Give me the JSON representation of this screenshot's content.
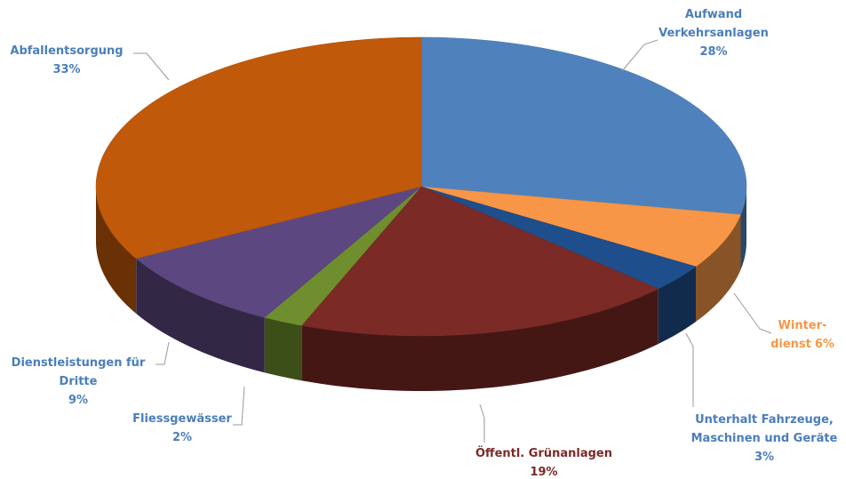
{
  "chart_data": {
    "type": "pie3d",
    "categories": [
      [
        "Aufwand",
        "Verkehrsanlagen"
      ],
      [
        "Winter-",
        "dienst"
      ],
      [
        "Unterhalt Fahrzeuge,",
        "Maschinen und Geräte"
      ],
      [
        "Öffentl. Grünanlagen"
      ],
      [
        "Fliessgewässer"
      ],
      [
        "Dienstleistungen für",
        "Dritte"
      ],
      [
        "Abfallentsorgung"
      ]
    ],
    "values": [
      28,
      6,
      3,
      19,
      2,
      9,
      33
    ],
    "value_labels": [
      "28%",
      "6%",
      "3%",
      "19%",
      "2%",
      "9%",
      "33%"
    ],
    "colors": [
      "#4f81bd",
      "#f79646",
      "#1f4e8c",
      "#7b2a26",
      "#6f8f2e",
      "#5c4780",
      "#c0590a"
    ],
    "label_colors": [
      "#4a7ebb",
      "#f79646",
      "#4a7ebb",
      "#7b2a26",
      "#4a7ebb",
      "#4a7ebb",
      "#4a7ebb"
    ]
  }
}
